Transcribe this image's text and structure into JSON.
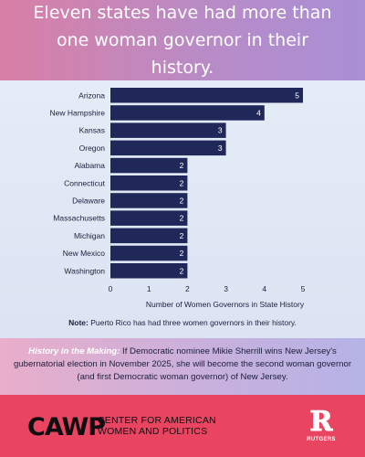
{
  "header": {
    "title": "Eleven states have had more than one woman governor in their history."
  },
  "chart_data": {
    "type": "bar",
    "orientation": "horizontal",
    "categories": [
      "Arizona",
      "New Hampshire",
      "Kansas",
      "Oregon",
      "Alabama",
      "Connecticut",
      "Delaware",
      "Massachusetts",
      "Michigan",
      "New Mexico",
      "Washington"
    ],
    "values": [
      5,
      4,
      3,
      3,
      2,
      2,
      2,
      2,
      2,
      2,
      2
    ],
    "xlabel": "Number of Women Governors in State History",
    "ylabel": "",
    "xlim": [
      0,
      5
    ],
    "xticks": [
      "0",
      "1",
      "2",
      "3",
      "4",
      "5"
    ],
    "bar_color": "#20285a",
    "label_color": "#ffffff",
    "grid": false
  },
  "note": {
    "label": "Note:",
    "text": " Puerto Rico has had three women governors in their history."
  },
  "history": {
    "lead": "History in the Making:",
    "text": " If Democratic nominee Mikie Sherrill wins New Jersey's gubernatorial election in November 2025, she will become the second woman governor (and first Democratic woman governor) of New Jersey."
  },
  "footer": {
    "logo": "CAWP",
    "org_line1": "CENTER FOR AMERICAN",
    "org_line2": "WOMEN AND POLITICS",
    "rutgers_letter": "R",
    "rutgers_word": "RUTGERS"
  }
}
